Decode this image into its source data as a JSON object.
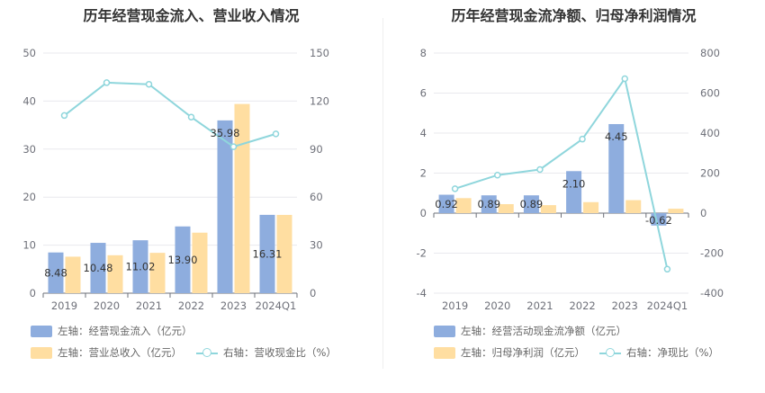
{
  "colors": {
    "bar1": "#8eadde",
    "bar2": "#ffdea1",
    "line": "#8fd6dc",
    "grid": "#e9e9ee"
  },
  "left": {
    "title": "历年经营现金流入、营业收入情况",
    "legend": {
      "bar1": "左轴：经营现金流入（亿元）",
      "bar2": "左轴：营业总收入（亿元）",
      "line": "右轴：营收现金比（%）"
    }
  },
  "right": {
    "title": "历年经营现金流净额、归母净利润情况",
    "legend": {
      "bar1": "左轴：经营活动现金流净额（亿元）",
      "bar2": "左轴：归母净利润（亿元）",
      "line": "右轴：净现比（%）"
    }
  },
  "chart_data": [
    {
      "type": "bar",
      "title": "历年经营现金流入、营业收入情况",
      "categories": [
        "2019",
        "2020",
        "2021",
        "2022",
        "2023",
        "2024Q1"
      ],
      "left_axis": {
        "min": 0,
        "max": 50,
        "ticks": [
          0,
          10,
          20,
          30,
          40,
          50
        ]
      },
      "right_axis": {
        "min": 0,
        "max": 150,
        "ticks": [
          0,
          30,
          60,
          90,
          120,
          150
        ]
      },
      "series": [
        {
          "name": "左轴：经营现金流入（亿元）",
          "kind": "bar",
          "axis": "left",
          "values": [
            8.48,
            10.48,
            11.02,
            13.9,
            35.98,
            16.31
          ],
          "labels": [
            "8.48",
            "10.48",
            "11.02",
            "13.90",
            "35.98",
            "16.31"
          ]
        },
        {
          "name": "左轴：营业总收入（亿元）",
          "kind": "bar",
          "axis": "left",
          "values": [
            7.6,
            7.9,
            8.4,
            12.6,
            39.4,
            16.3
          ]
        },
        {
          "name": "右轴：营收现金比（%）",
          "kind": "line",
          "axis": "right",
          "values": [
            111,
            131.5,
            130.5,
            110,
            91.5,
            99.5
          ]
        }
      ]
    },
    {
      "type": "bar",
      "title": "历年经营现金流净额、归母净利润情况",
      "categories": [
        "2019",
        "2020",
        "2021",
        "2022",
        "2023",
        "2024Q1"
      ],
      "left_axis": {
        "min": -4,
        "max": 8,
        "ticks": [
          -4,
          -2,
          0,
          2,
          4,
          6,
          8
        ]
      },
      "right_axis": {
        "min": -400,
        "max": 800,
        "ticks": [
          -400,
          -200,
          0,
          200,
          400,
          600,
          800
        ]
      },
      "series": [
        {
          "name": "左轴：经营活动现金流净额（亿元）",
          "kind": "bar",
          "axis": "left",
          "values": [
            0.92,
            0.89,
            0.89,
            2.1,
            4.45,
            -0.62
          ],
          "labels": [
            "0.92",
            "0.89",
            "0.89",
            "2.10",
            "4.45",
            "-0.62"
          ]
        },
        {
          "name": "左轴：归母净利润（亿元）",
          "kind": "bar",
          "axis": "left",
          "values": [
            0.75,
            0.45,
            0.4,
            0.55,
            0.65,
            0.22
          ]
        },
        {
          "name": "右轴：净现比（%）",
          "kind": "line",
          "axis": "right",
          "values": [
            122,
            190,
            218,
            370,
            672,
            -280
          ]
        }
      ]
    }
  ]
}
